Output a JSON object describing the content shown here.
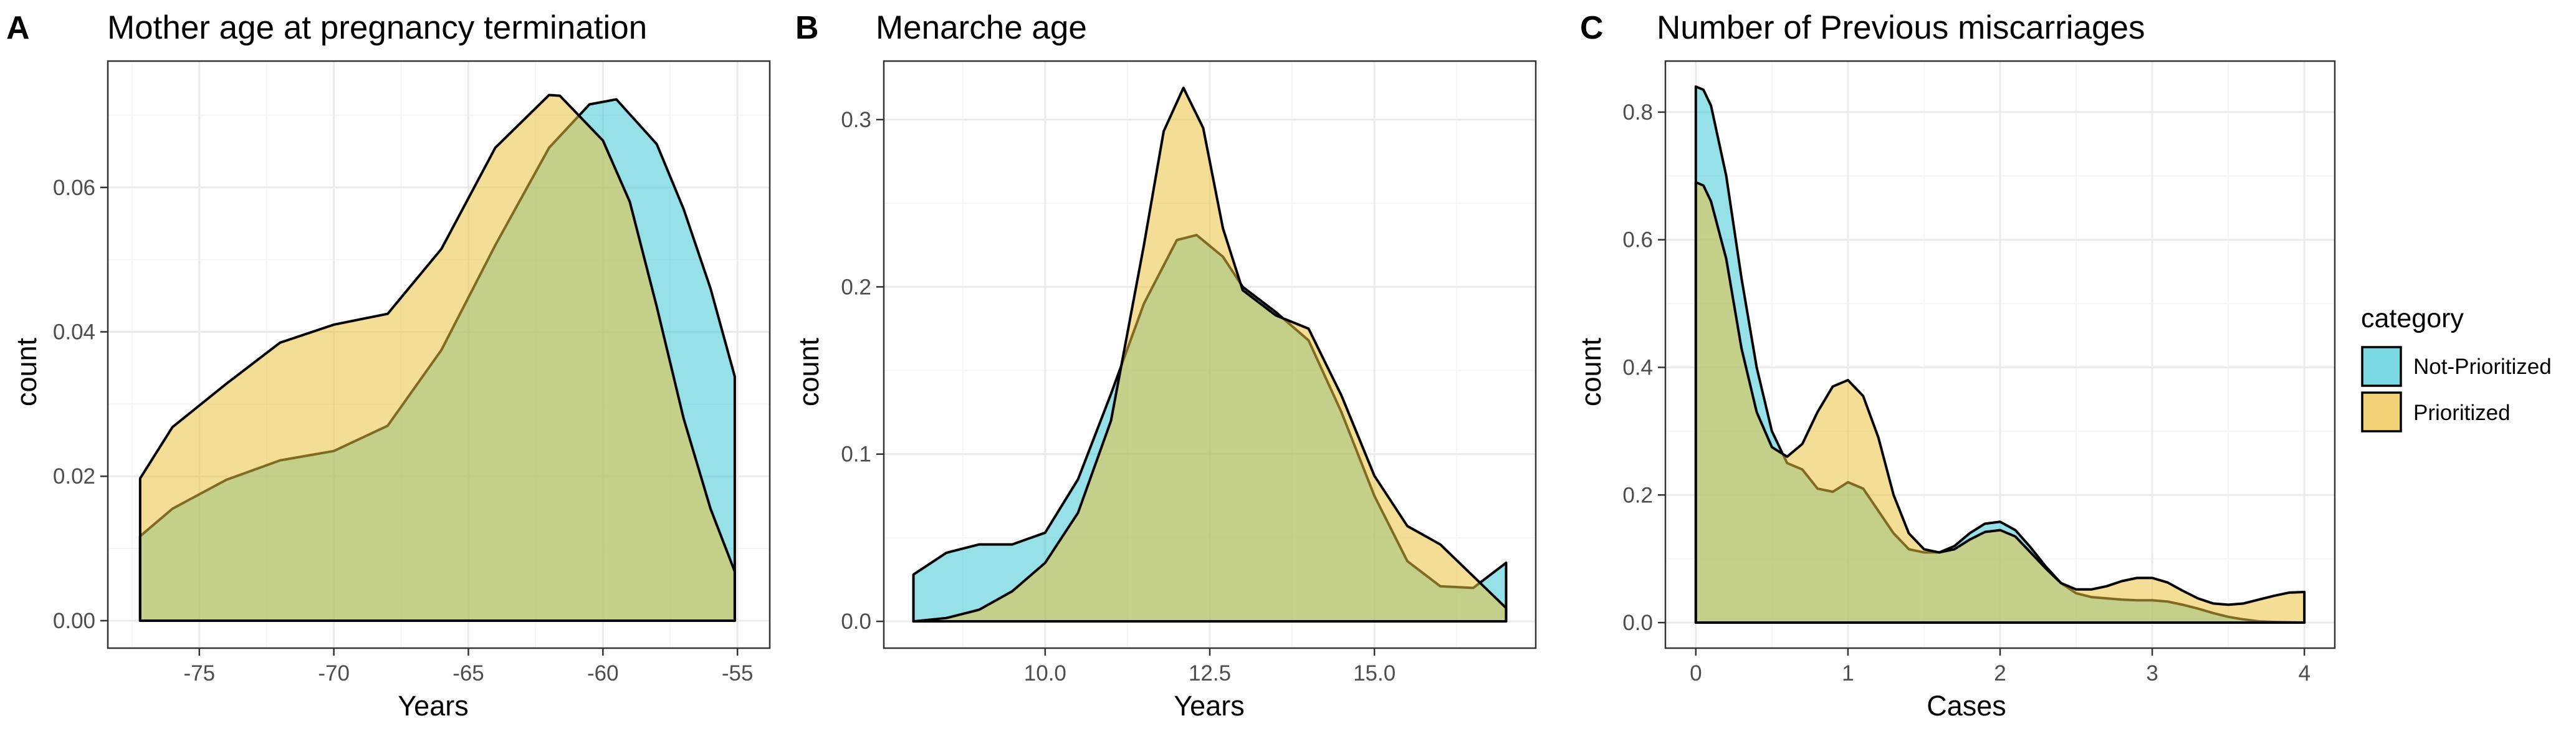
{
  "colors": {
    "Not-Prioritized": "#40c8d4",
    "Prioritized": "#ebc13d",
    "fill_opacity": 0.55
  },
  "legend": {
    "title": "category",
    "items": [
      "Not-Prioritized",
      "Prioritized"
    ]
  },
  "chart_data": [
    {
      "type": "area",
      "panel_letter": "A",
      "title": "Mother age at pregnancy termination",
      "xlabel": "Years",
      "ylabel": "count",
      "xlim": [
        -78.4,
        -53.8
      ],
      "ylim": [
        -0.0038,
        0.0775
      ],
      "xticks": [
        -75,
        -70,
        -65,
        -60,
        -55
      ],
      "yticks": [
        0,
        0.02,
        0.04,
        0.06
      ],
      "ytick_labels": [
        "0.00",
        "0.02",
        "0.04",
        "0.06"
      ],
      "series": [
        {
          "name": "Not-Prioritized",
          "x": [
            -77.2,
            -76,
            -74,
            -72,
            -70,
            -68,
            -66,
            -64,
            -62,
            -60.5,
            -59.5,
            -58,
            -57,
            -56,
            -55.1
          ],
          "y": [
            0.0117,
            0.0155,
            0.0195,
            0.0222,
            0.0235,
            0.027,
            0.0375,
            0.052,
            0.0655,
            0.0715,
            0.0722,
            0.066,
            0.057,
            0.046,
            0.0338
          ]
        },
        {
          "name": "Prioritized",
          "x": [
            -77.2,
            -76,
            -74,
            -72,
            -70,
            -68,
            -66,
            -64,
            -62,
            -61.6,
            -60,
            -59,
            -58,
            -57,
            -56,
            -55.1
          ],
          "y": [
            0.0197,
            0.0268,
            0.0328,
            0.0385,
            0.041,
            0.0425,
            0.0515,
            0.0655,
            0.0728,
            0.0727,
            0.0665,
            0.058,
            0.0435,
            0.028,
            0.0155,
            0.0068
          ]
        }
      ]
    },
    {
      "type": "area",
      "panel_letter": "B",
      "title": "Menarche age",
      "xlabel": "Years",
      "ylabel": "count",
      "xlim": [
        7.55,
        17.45
      ],
      "ylim": [
        -0.016,
        0.335
      ],
      "xticks": [
        10,
        12.5,
        15
      ],
      "xtick_labels": [
        "10.0",
        "12.5",
        "15.0"
      ],
      "yticks": [
        0,
        0.1,
        0.2,
        0.3
      ],
      "ytick_labels": [
        "0.0",
        "0.1",
        "0.2",
        "0.3"
      ],
      "series": [
        {
          "name": "Not-Prioritized",
          "x": [
            8,
            8.5,
            9,
            9.5,
            10,
            10.5,
            11,
            11.5,
            12,
            12.3,
            12.7,
            13,
            13.5,
            14,
            14.5,
            15,
            15.5,
            16,
            16.5,
            17
          ],
          "y": [
            0.028,
            0.041,
            0.046,
            0.046,
            0.053,
            0.085,
            0.136,
            0.19,
            0.228,
            0.231,
            0.218,
            0.2,
            0.185,
            0.168,
            0.125,
            0.075,
            0.036,
            0.021,
            0.02,
            0.035
          ]
        },
        {
          "name": "Prioritized",
          "x": [
            8,
            8.5,
            9,
            9.5,
            10,
            10.5,
            11,
            11.5,
            11.8,
            12.1,
            12.4,
            12.7,
            13,
            13.5,
            14,
            14.5,
            15,
            15.5,
            16,
            16.5,
            17
          ],
          "y": [
            0,
            0.002,
            0.007,
            0.018,
            0.035,
            0.065,
            0.12,
            0.225,
            0.293,
            0.319,
            0.295,
            0.235,
            0.198,
            0.183,
            0.175,
            0.135,
            0.087,
            0.057,
            0.046,
            0.027,
            0.008
          ]
        }
      ]
    },
    {
      "type": "area",
      "panel_letter": "C",
      "title": "Number of Previous miscarriages",
      "xlabel": "Cases",
      "ylabel": "count",
      "xlim": [
        -0.2,
        4.2
      ],
      "ylim": [
        -0.04,
        0.88
      ],
      "xticks": [
        0,
        1,
        2,
        3,
        4
      ],
      "yticks": [
        0,
        0.2,
        0.4,
        0.6,
        0.8
      ],
      "ytick_labels": [
        "0.0",
        "0.2",
        "0.4",
        "0.6",
        "0.8"
      ],
      "series": [
        {
          "name": "Not-Prioritized",
          "x": [
            0,
            0.05,
            0.1,
            0.2,
            0.3,
            0.4,
            0.5,
            0.6,
            0.7,
            0.8,
            0.9,
            1.0,
            1.1,
            1.2,
            1.3,
            1.4,
            1.5,
            1.6,
            1.7,
            1.8,
            1.9,
            2.0,
            2.1,
            2.2,
            2.3,
            2.4,
            2.5,
            2.6,
            2.7,
            2.8,
            2.9,
            3.0,
            3.1,
            3.2,
            3.3,
            3.4,
            3.5,
            3.6,
            3.7,
            3.8,
            3.9,
            4.0
          ],
          "y": [
            0.84,
            0.835,
            0.81,
            0.7,
            0.54,
            0.4,
            0.3,
            0.25,
            0.24,
            0.21,
            0.205,
            0.22,
            0.21,
            0.175,
            0.14,
            0.115,
            0.11,
            0.11,
            0.12,
            0.14,
            0.155,
            0.158,
            0.145,
            0.118,
            0.088,
            0.062,
            0.046,
            0.04,
            0.038,
            0.036,
            0.035,
            0.035,
            0.033,
            0.028,
            0.022,
            0.015,
            0.009,
            0.005,
            0.002,
            0.001,
            0.0005,
            0
          ]
        },
        {
          "name": "Prioritized",
          "x": [
            0,
            0.05,
            0.1,
            0.2,
            0.3,
            0.4,
            0.5,
            0.6,
            0.7,
            0.8,
            0.9,
            1.0,
            1.1,
            1.2,
            1.3,
            1.4,
            1.5,
            1.6,
            1.7,
            1.8,
            1.9,
            2.0,
            2.1,
            2.2,
            2.3,
            2.4,
            2.5,
            2.6,
            2.7,
            2.8,
            2.9,
            3.0,
            3.1,
            3.2,
            3.3,
            3.4,
            3.5,
            3.6,
            3.7,
            3.8,
            3.9,
            4.0
          ],
          "y": [
            0.69,
            0.685,
            0.66,
            0.57,
            0.43,
            0.33,
            0.275,
            0.26,
            0.28,
            0.33,
            0.37,
            0.38,
            0.355,
            0.29,
            0.2,
            0.14,
            0.115,
            0.11,
            0.115,
            0.13,
            0.142,
            0.145,
            0.135,
            0.11,
            0.085,
            0.062,
            0.052,
            0.052,
            0.057,
            0.065,
            0.07,
            0.07,
            0.063,
            0.05,
            0.038,
            0.03,
            0.028,
            0.03,
            0.036,
            0.042,
            0.047,
            0.048
          ]
        }
      ]
    }
  ]
}
